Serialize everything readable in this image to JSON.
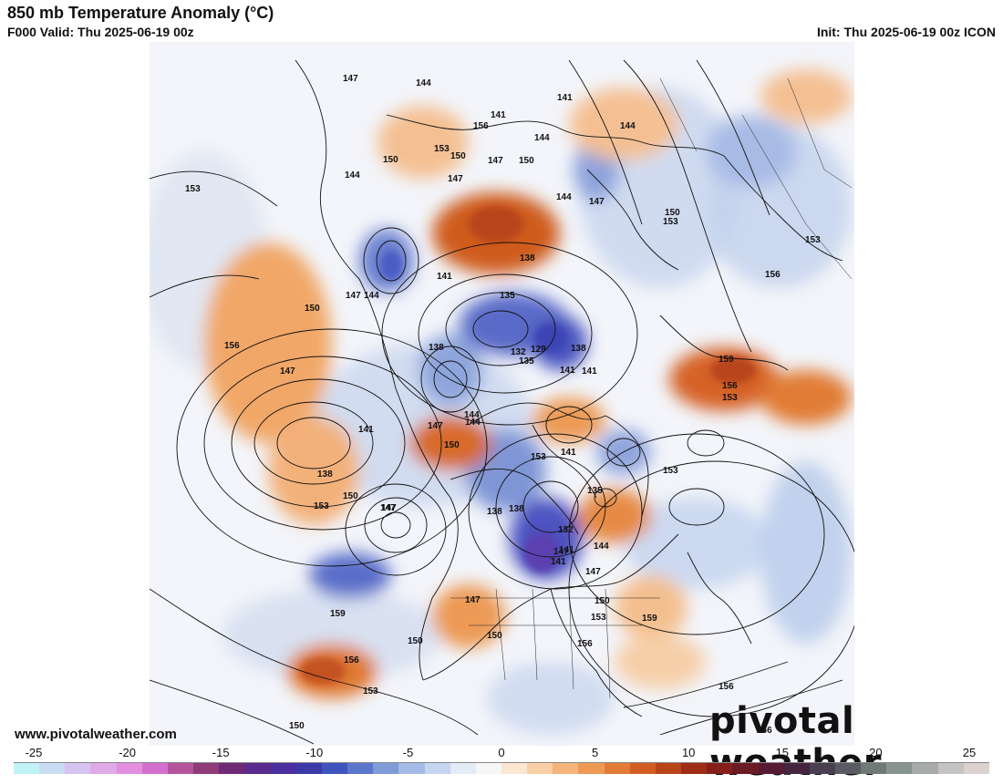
{
  "header": {
    "title": "850 mb Temperature Anomaly (°C)",
    "valid": "F000 Valid: Thu 2025-06-19 00z",
    "init": "Init: Thu 2025-06-19 00z ICON"
  },
  "footer": {
    "url": "www.pivotalweather.com",
    "brand": "pivotal weather"
  },
  "colorbar": {
    "ticks": [
      "-25",
      "-20",
      "-15",
      "-10",
      "-5",
      "0",
      "5",
      "10",
      "15",
      "20",
      "25"
    ],
    "colors": [
      "#bff3f6",
      "#c9dcf4",
      "#d6c3ef",
      "#e0a9e8",
      "#e38fe0",
      "#d46fd0",
      "#b4559c",
      "#8f3b78",
      "#6e2a75",
      "#5a2a8c",
      "#4b2fa0",
      "#3b3aa8",
      "#3f55bd",
      "#5b77cc",
      "#7f9bd8",
      "#a3bbe6",
      "#c5d5ef",
      "#e3ebf6",
      "#f6f6f6",
      "#fbe6d2",
      "#f8cfa7",
      "#f4b47c",
      "#ee9a56",
      "#e27b36",
      "#d15d22",
      "#b8451a",
      "#9e2d18",
      "#842019",
      "#6b1b24",
      "#571c33",
      "#45253f",
      "#4a3f4f",
      "#5a5a63",
      "#6e7a73",
      "#87948e",
      "#a7aba8",
      "#c4c3c2",
      "#dcd1cf"
    ]
  },
  "map": {
    "contour_labels": [
      {
        "id": "l1",
        "text": "147"
      },
      {
        "id": "l2",
        "text": "144"
      },
      {
        "id": "l3",
        "text": "141"
      },
      {
        "id": "l4",
        "text": "156"
      },
      {
        "id": "l5",
        "text": "144"
      },
      {
        "id": "l6",
        "text": "150"
      },
      {
        "id": "l7",
        "text": "153"
      },
      {
        "id": "l8",
        "text": "150"
      },
      {
        "id": "l9",
        "text": "144"
      },
      {
        "id": "l10",
        "text": "141"
      },
      {
        "id": "l11",
        "text": "144"
      },
      {
        "id": "l12",
        "text": "147"
      },
      {
        "id": "l13",
        "text": "147"
      },
      {
        "id": "l14",
        "text": "150"
      },
      {
        "id": "l15",
        "text": "153"
      },
      {
        "id": "l16",
        "text": "153"
      },
      {
        "id": "l17",
        "text": "147"
      },
      {
        "id": "l18",
        "text": "150"
      },
      {
        "id": "l19",
        "text": "144"
      },
      {
        "id": "l20",
        "text": "138"
      },
      {
        "id": "l21",
        "text": "135"
      },
      {
        "id": "l22",
        "text": "132"
      },
      {
        "id": "l23",
        "text": "129"
      },
      {
        "id": "l24",
        "text": "135"
      },
      {
        "id": "l25",
        "text": "138"
      },
      {
        "id": "l26",
        "text": "141"
      },
      {
        "id": "l27",
        "text": "156"
      },
      {
        "id": "l28",
        "text": "153"
      },
      {
        "id": "l29",
        "text": "156"
      },
      {
        "id": "l30",
        "text": "159"
      },
      {
        "id": "l31",
        "text": "156"
      },
      {
        "id": "l32",
        "text": "153"
      },
      {
        "id": "l33",
        "text": "150"
      },
      {
        "id": "l34",
        "text": "147"
      },
      {
        "id": "l35",
        "text": "141"
      },
      {
        "id": "l36",
        "text": "138"
      },
      {
        "id": "l37",
        "text": "147"
      },
      {
        "id": "l38",
        "text": "144"
      },
      {
        "id": "l39",
        "text": "141"
      },
      {
        "id": "l40",
        "text": "138"
      },
      {
        "id": "l41",
        "text": "153"
      },
      {
        "id": "l42",
        "text": "150"
      },
      {
        "id": "l43",
        "text": "147"
      },
      {
        "id": "l44",
        "text": "159"
      },
      {
        "id": "l45",
        "text": "156"
      },
      {
        "id": "l46",
        "text": "153"
      },
      {
        "id": "l47",
        "text": "150"
      },
      {
        "id": "l48",
        "text": "147"
      },
      {
        "id": "l49",
        "text": "150"
      },
      {
        "id": "l50",
        "text": "156"
      },
      {
        "id": "l51",
        "text": "159"
      },
      {
        "id": "l52",
        "text": "141"
      },
      {
        "id": "l53",
        "text": "144"
      },
      {
        "id": "l54",
        "text": "147"
      },
      {
        "id": "l55",
        "text": "150"
      },
      {
        "id": "l56",
        "text": "153"
      },
      {
        "id": "l57",
        "text": "156"
      },
      {
        "id": "l58",
        "text": "153"
      },
      {
        "id": "l59",
        "text": "138"
      },
      {
        "id": "l60",
        "text": "141"
      },
      {
        "id": "l61",
        "text": "135"
      },
      {
        "id": "l62",
        "text": "132"
      },
      {
        "id": "l63",
        "text": "147"
      },
      {
        "id": "l64",
        "text": "156"
      },
      {
        "id": "l65",
        "text": "150"
      },
      {
        "id": "l66",
        "text": "144"
      },
      {
        "id": "l67",
        "text": "141"
      },
      {
        "id": "l68",
        "text": "138"
      },
      {
        "id": "l69",
        "text": "147"
      },
      {
        "id": "l70",
        "text": "150"
      },
      {
        "id": "l71",
        "text": "147"
      },
      {
        "id": "l72",
        "text": "153"
      },
      {
        "id": "l73",
        "text": "141"
      },
      {
        "id": "l74",
        "text": "144"
      }
    ]
  }
}
